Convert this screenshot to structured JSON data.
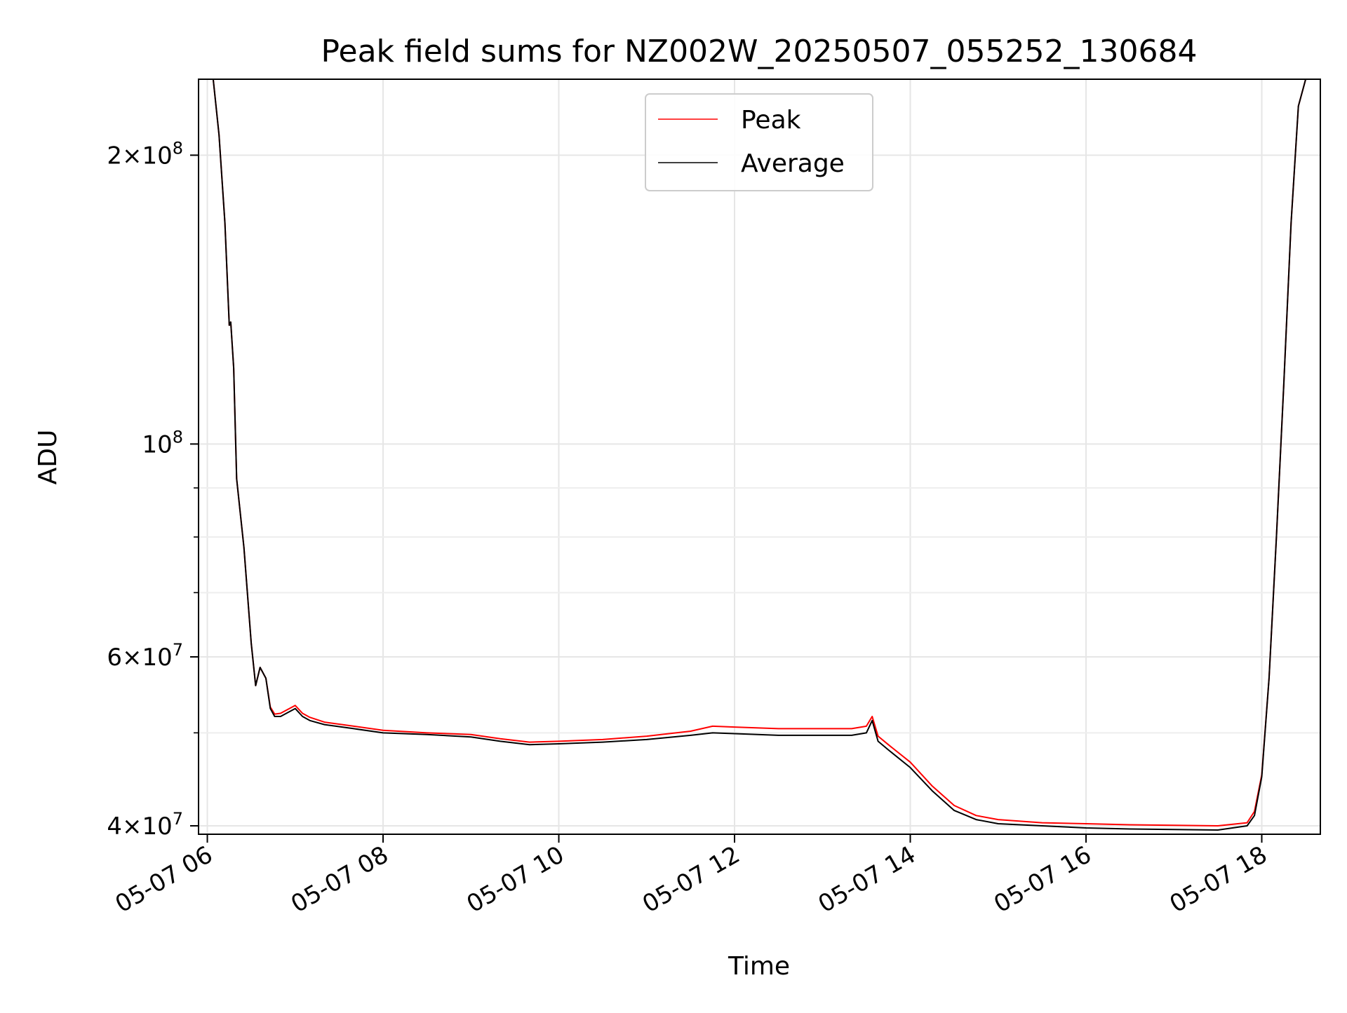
{
  "chart_data": {
    "type": "line",
    "title": "Peak field sums for NZ002W_20250507_055252_130684",
    "xlabel": "Time",
    "ylabel": "ADU",
    "y_scale": "log",
    "ylim": [
      39200000,
      240000000
    ],
    "xlim": [
      "2025-05-07 05:54",
      "2025-05-07 18:40"
    ],
    "grid": true,
    "legend_placement": "upper-center",
    "x_ticks": [
      {
        "value": "2025-05-07 06:00",
        "label": "05-07 06"
      },
      {
        "value": "2025-05-07 08:00",
        "label": "05-07 08"
      },
      {
        "value": "2025-05-07 10:00",
        "label": "05-07 10"
      },
      {
        "value": "2025-05-07 12:00",
        "label": "05-07 12"
      },
      {
        "value": "2025-05-07 14:00",
        "label": "05-07 14"
      },
      {
        "value": "2025-05-07 16:00",
        "label": "05-07 16"
      },
      {
        "value": "2025-05-07 18:00",
        "label": "05-07 18"
      }
    ],
    "y_ticks": [
      {
        "value": 40000000,
        "base": "4",
        "exp": "7"
      },
      {
        "value": 60000000,
        "base": "6",
        "exp": "7"
      },
      {
        "value": 100000000,
        "base": "",
        "exp": "8"
      },
      {
        "value": 200000000,
        "base": "2",
        "exp": "8"
      }
    ],
    "y_minor_ticks": [
      50000000,
      70000000,
      80000000,
      90000000
    ],
    "series": [
      {
        "name": "Average",
        "color": "#000000",
        "x": [
          "2025-05-07 06:04",
          "2025-05-07 06:08",
          "2025-05-07 06:12",
          "2025-05-07 06:15",
          "2025-05-07 06:16",
          "2025-05-07 06:18",
          "2025-05-07 06:20",
          "2025-05-07 06:25",
          "2025-05-07 06:30",
          "2025-05-07 06:33",
          "2025-05-07 06:36",
          "2025-05-07 06:40",
          "2025-05-07 06:43",
          "2025-05-07 06:46",
          "2025-05-07 06:50",
          "2025-05-07 07:00",
          "2025-05-07 07:05",
          "2025-05-07 07:10",
          "2025-05-07 07:20",
          "2025-05-07 07:40",
          "2025-05-07 08:00",
          "2025-05-07 08:30",
          "2025-05-07 09:00",
          "2025-05-07 09:20",
          "2025-05-07 09:40",
          "2025-05-07 10:00",
          "2025-05-07 10:30",
          "2025-05-07 11:00",
          "2025-05-07 11:30",
          "2025-05-07 11:45",
          "2025-05-07 12:00",
          "2025-05-07 12:30",
          "2025-05-07 13:00",
          "2025-05-07 13:20",
          "2025-05-07 13:30",
          "2025-05-07 13:34",
          "2025-05-07 13:38",
          "2025-05-07 13:45",
          "2025-05-07 14:00",
          "2025-05-07 14:15",
          "2025-05-07 14:30",
          "2025-05-07 14:45",
          "2025-05-07 15:00",
          "2025-05-07 15:30",
          "2025-05-07 16:00",
          "2025-05-07 16:30",
          "2025-05-07 17:00",
          "2025-05-07 17:30",
          "2025-05-07 17:50",
          "2025-05-07 17:55",
          "2025-05-07 18:00",
          "2025-05-07 18:05",
          "2025-05-07 18:10",
          "2025-05-07 18:15",
          "2025-05-07 18:20",
          "2025-05-07 18:25",
          "2025-05-07 18:30"
        ],
        "y": [
          240000000,
          210000000,
          170000000,
          133000000,
          134000000,
          120000000,
          92000000,
          78000000,
          62000000,
          56000000,
          58500000,
          57000000,
          53000000,
          52000000,
          52000000,
          53000000,
          52000000,
          51500000,
          51000000,
          50500000,
          50000000,
          49800000,
          49500000,
          49000000,
          48600000,
          48700000,
          48900000,
          49200000,
          49700000,
          50000000,
          49900000,
          49700000,
          49700000,
          49700000,
          50000000,
          51500000,
          49000000,
          48000000,
          46000000,
          43500000,
          41500000,
          40600000,
          40200000,
          40000000,
          39800000,
          39700000,
          39650000,
          39600000,
          40000000,
          41000000,
          45000000,
          57000000,
          80000000,
          115000000,
          170000000,
          225000000,
          240000000
        ]
      },
      {
        "name": "Peak",
        "color": "#ff0000",
        "x": [
          "2025-05-07 06:04",
          "2025-05-07 06:08",
          "2025-05-07 06:12",
          "2025-05-07 06:15",
          "2025-05-07 06:16",
          "2025-05-07 06:18",
          "2025-05-07 06:20",
          "2025-05-07 06:25",
          "2025-05-07 06:30",
          "2025-05-07 06:33",
          "2025-05-07 06:36",
          "2025-05-07 06:40",
          "2025-05-07 06:43",
          "2025-05-07 06:46",
          "2025-05-07 06:50",
          "2025-05-07 07:00",
          "2025-05-07 07:05",
          "2025-05-07 07:10",
          "2025-05-07 07:20",
          "2025-05-07 07:40",
          "2025-05-07 08:00",
          "2025-05-07 08:30",
          "2025-05-07 09:00",
          "2025-05-07 09:20",
          "2025-05-07 09:40",
          "2025-05-07 10:00",
          "2025-05-07 10:30",
          "2025-05-07 11:00",
          "2025-05-07 11:30",
          "2025-05-07 11:45",
          "2025-05-07 12:00",
          "2025-05-07 12:30",
          "2025-05-07 13:00",
          "2025-05-07 13:20",
          "2025-05-07 13:30",
          "2025-05-07 13:34",
          "2025-05-07 13:38",
          "2025-05-07 13:45",
          "2025-05-07 14:00",
          "2025-05-07 14:15",
          "2025-05-07 14:30",
          "2025-05-07 14:45",
          "2025-05-07 15:00",
          "2025-05-07 15:30",
          "2025-05-07 16:00",
          "2025-05-07 16:30",
          "2025-05-07 17:00",
          "2025-05-07 17:30",
          "2025-05-07 17:50",
          "2025-05-07 17:55",
          "2025-05-07 18:00",
          "2025-05-07 18:05",
          "2025-05-07 18:10",
          "2025-05-07 18:15",
          "2025-05-07 18:20",
          "2025-05-07 18:25",
          "2025-05-07 18:30"
        ],
        "y": [
          240000000,
          210000000,
          170000000,
          133000000,
          134000000,
          120000000,
          92000000,
          78000000,
          62000000,
          56000000,
          58500000,
          57000000,
          53200000,
          52300000,
          52400000,
          53400000,
          52400000,
          51900000,
          51300000,
          50800000,
          50300000,
          50000000,
          49800000,
          49300000,
          48900000,
          49000000,
          49200000,
          49600000,
          50200000,
          50800000,
          50700000,
          50500000,
          50500000,
          50500000,
          50800000,
          52000000,
          49600000,
          48600000,
          46600000,
          44000000,
          42000000,
          41000000,
          40600000,
          40300000,
          40200000,
          40100000,
          40050000,
          40000000,
          40300000,
          41400000,
          45200000,
          57000000,
          80000000,
          115000000,
          170000000,
          225000000,
          240000000
        ]
      }
    ]
  }
}
